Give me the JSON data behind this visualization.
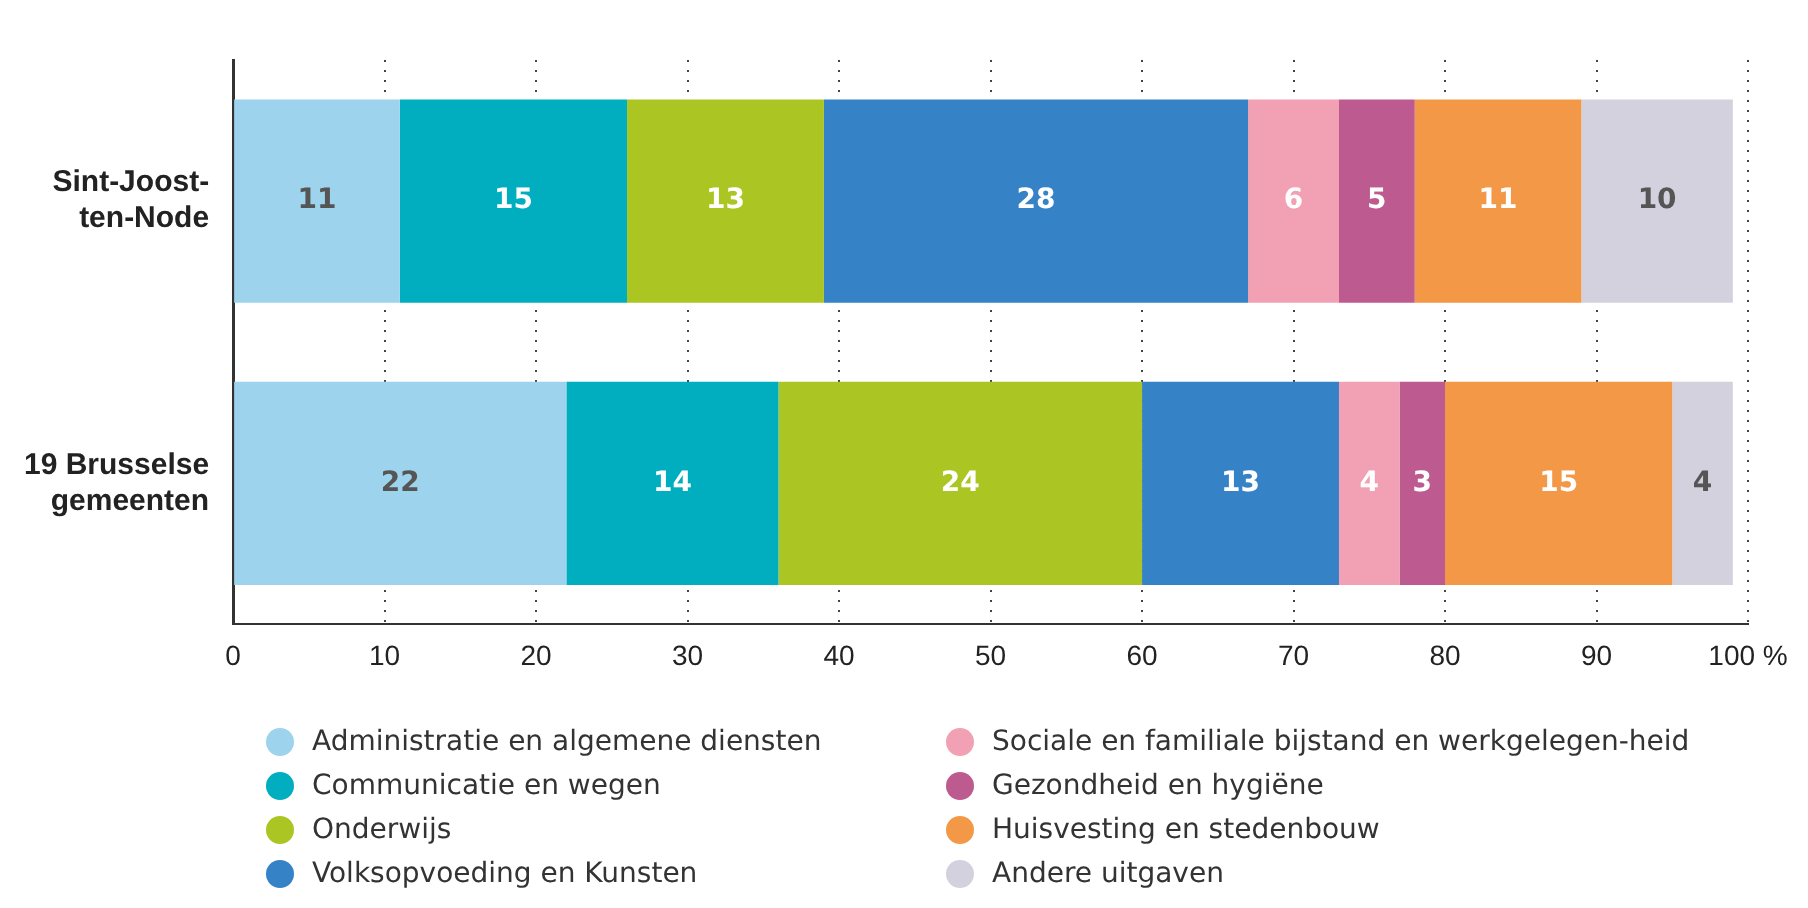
{
  "chart_data": {
    "type": "bar",
    "orientation": "horizontal",
    "stacked": true,
    "categories": [
      "Sint-Joost-ten-Node",
      "19 Brusselse gemeenten"
    ],
    "series": [
      {
        "name": "Administratie en algemene diensten",
        "color": "#9dd3ec",
        "values": [
          11,
          22
        ]
      },
      {
        "name": "Communicatie en wegen",
        "color": "#00aebf",
        "values": [
          15,
          14
        ]
      },
      {
        "name": "Onderwijs",
        "color": "#abc622",
        "values": [
          13,
          24
        ]
      },
      {
        "name": "Volksopvoeding en Kunsten",
        "color": "#3582c6",
        "values": [
          28,
          13
        ]
      },
      {
        "name": "Sociale en familiale bijstand en werkgelegen-heid",
        "color": "#f2a0b4",
        "values": [
          6,
          4
        ]
      },
      {
        "name": "Gezondheid en hygiëne",
        "color": "#bd5a8f",
        "values": [
          5,
          3
        ]
      },
      {
        "name": "Huisvesting en stedenbouw",
        "color": "#f39847",
        "values": [
          11,
          15
        ]
      },
      {
        "name": "Andere uitgaven",
        "color": "#d3d1de",
        "values": [
          10,
          4
        ]
      }
    ],
    "xlim": [
      0,
      100
    ],
    "xticks": [
      0,
      10,
      20,
      30,
      40,
      50,
      60,
      70,
      80,
      90,
      {
        "value": 100,
        "label": "100 %"
      }
    ],
    "grid": "x",
    "legend": "bottom",
    "data_labels": true
  }
}
